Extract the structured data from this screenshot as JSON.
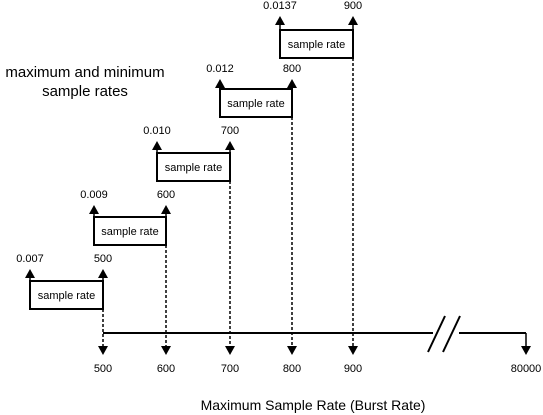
{
  "heading": {
    "line1": "maximum and minimum",
    "line2": "sample rates"
  },
  "axis_title": "Maximum Sample Rate (Burst Rate)",
  "axis_ticks": [
    "500",
    "600",
    "700",
    "800",
    "900",
    "80000"
  ],
  "tiers": [
    {
      "box_label": "sample rate",
      "min_label": "0.007",
      "max_label": "500"
    },
    {
      "box_label": "sample rate",
      "min_label": "0.009",
      "max_label": "600"
    },
    {
      "box_label": "sample rate",
      "min_label": "0.010",
      "max_label": "700"
    },
    {
      "box_label": "sample rate",
      "min_label": "0.012",
      "max_label": "800"
    },
    {
      "box_label": "sample rate",
      "min_label": "0.0137",
      "max_label": "900"
    }
  ],
  "axis_break": true
}
